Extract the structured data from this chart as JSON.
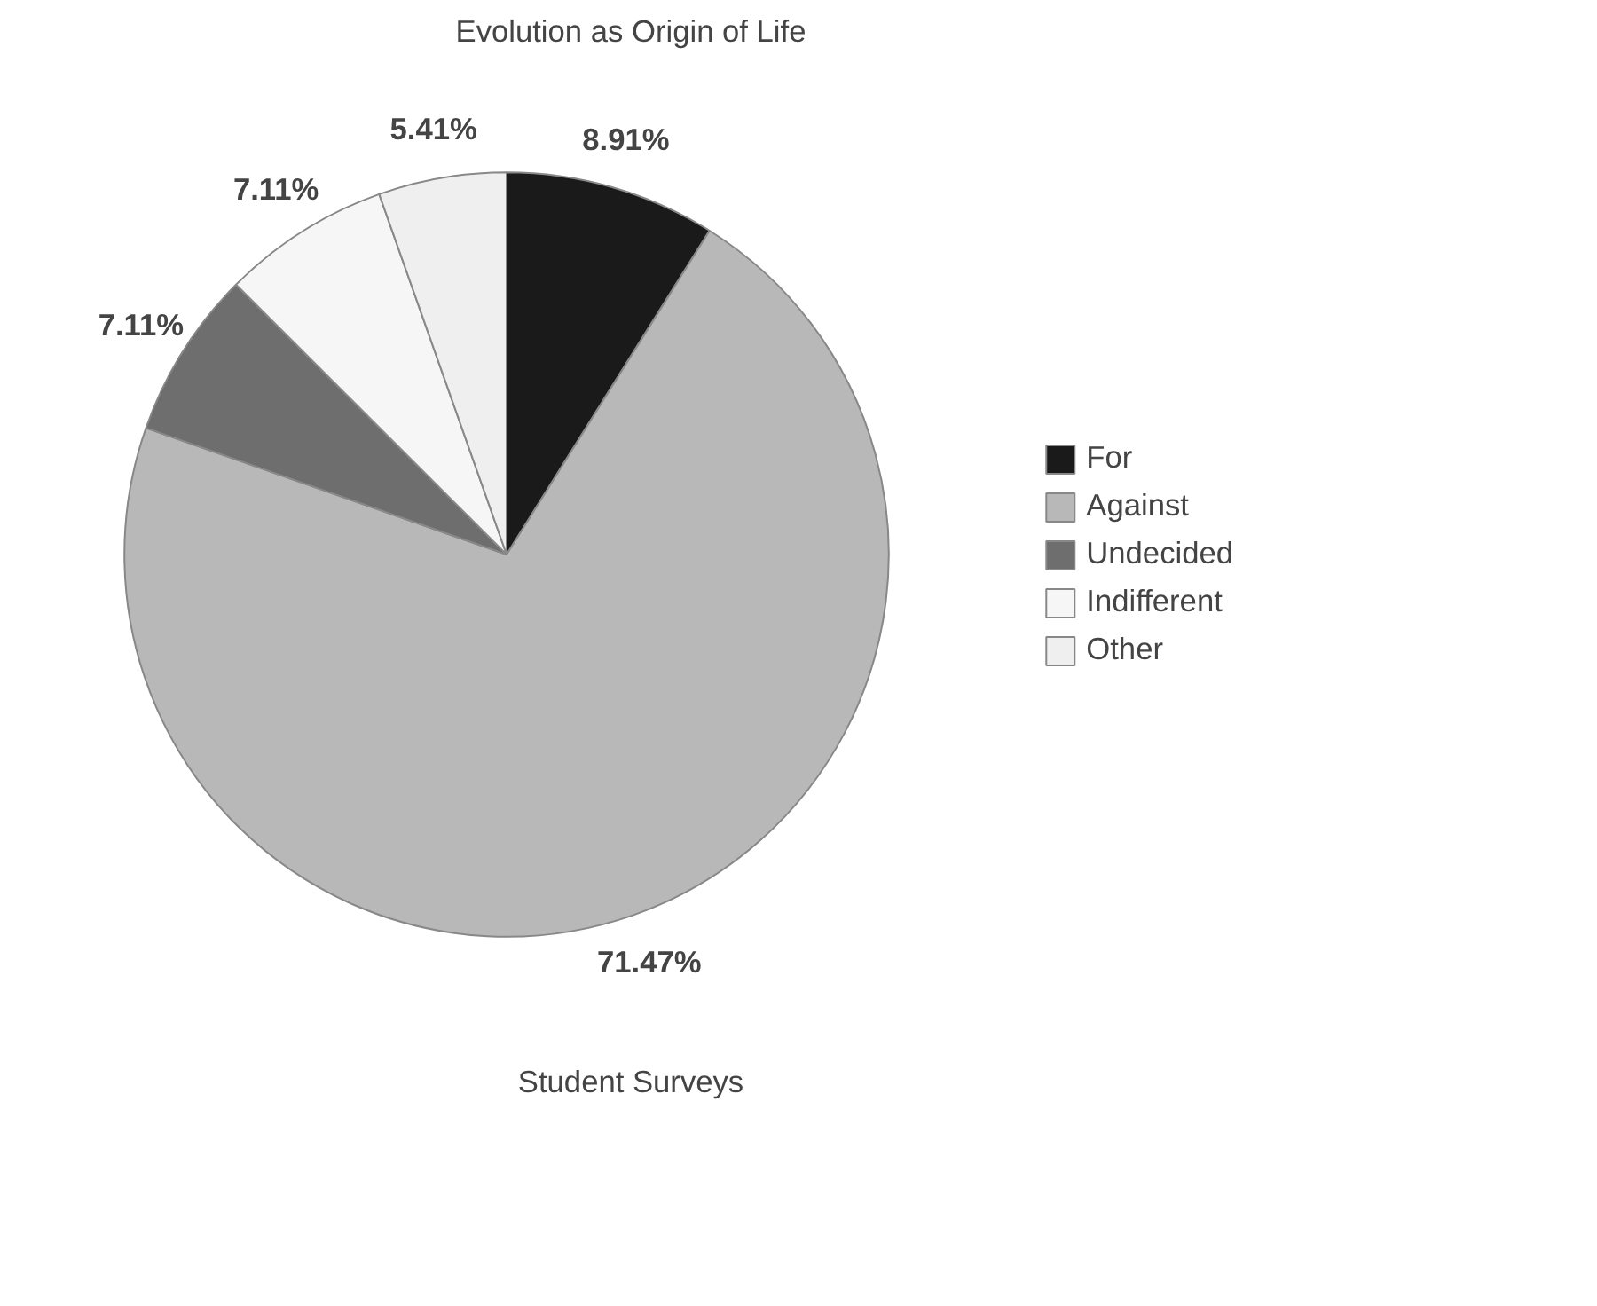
{
  "chart_data": {
    "type": "pie",
    "title": "Evolution as Origin of Life",
    "xlabel": "Student Surveys",
    "categories": [
      "For",
      "Against",
      "Undecided",
      "Indifferent",
      "Other"
    ],
    "values": [
      8.91,
      71.47,
      7.11,
      7.11,
      5.41
    ],
    "value_labels": [
      "8.91%",
      "71.47%",
      "7.11%",
      "7.11%",
      "5.41%"
    ],
    "colors": [
      "#1a1a1a",
      "#b8b8b8",
      "#6e6e6e",
      "#f6f6f6",
      "#efefef"
    ],
    "legend": "right"
  }
}
